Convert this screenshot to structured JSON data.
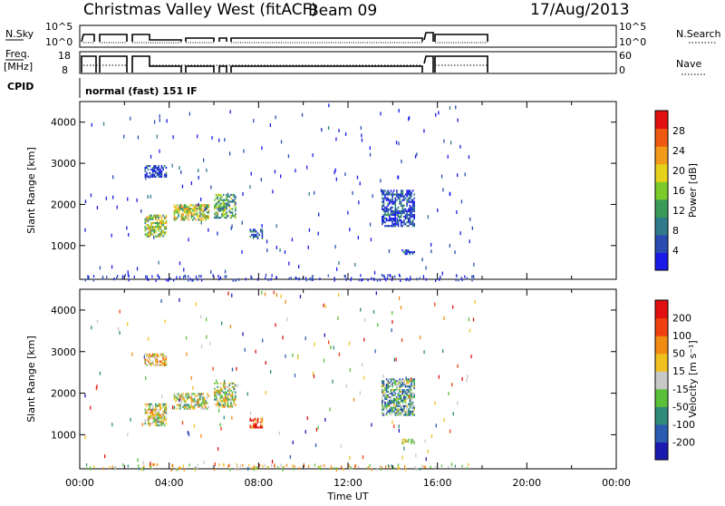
{
  "header": {
    "station": "Christmas Valley West (fitACF)",
    "beam": "Beam 09",
    "date": "17/Aug/2013"
  },
  "status_panels": {
    "nsky_label": "N.Sky",
    "nsky_ticks": [
      "10^5",
      "10^0"
    ],
    "nsearch_label": "N.Search",
    "nsearch_ticks": [
      "10^5",
      "10^0"
    ],
    "freq_label_1": "Freq.",
    "freq_label_2": "[MHz]",
    "freq_ticks": [
      "18",
      "8"
    ],
    "nave_label": "Nave",
    "nave_ticks": [
      "60",
      "0"
    ],
    "cpid_label": "CPID",
    "cpid_value": "normal (fast) 151 IF"
  },
  "chart_data": [
    {
      "type": "heatmap",
      "panel": "power",
      "ylabel": "Slant Range [km]",
      "ylim": [
        180,
        4500
      ],
      "xlim": [
        0,
        24
      ],
      "yticks": [
        "4000",
        "3000",
        "2000",
        "1000"
      ],
      "colorbar_label": "Power [dB]",
      "colorbar_ticks": [
        "28",
        "24",
        "20",
        "16",
        "12",
        "8",
        "4"
      ],
      "colors": [
        "#1a1ae6",
        "#2a4bb0",
        "#2f7a8a",
        "#3a9a5a",
        "#7acb2a",
        "#e6d21a",
        "#f29a1a",
        "#f05a10",
        "#e01010"
      ],
      "features": [
        {
          "name": "echo-band-1",
          "x": [
            2.9,
            3.9
          ],
          "y": [
            1250,
            1800
          ],
          "level": 0.5
        },
        {
          "name": "echo-band-2",
          "x": [
            4.2,
            5.8
          ],
          "y": [
            1650,
            2050
          ],
          "level": 0.55
        },
        {
          "name": "echo-band-3",
          "x": [
            6.0,
            7.0
          ],
          "y": [
            1700,
            2300
          ],
          "level": 0.4
        },
        {
          "name": "echo-band-4",
          "x": [
            7.6,
            8.2
          ],
          "y": [
            1200,
            1450
          ],
          "level": 0.2
        },
        {
          "name": "echo-band-5",
          "x": [
            2.9,
            3.9
          ],
          "y": [
            2700,
            3000
          ],
          "level": 0.1
        },
        {
          "name": "echo-band-6",
          "x": [
            13.5,
            15.0
          ],
          "y": [
            1500,
            2400
          ],
          "level": 0.15
        },
        {
          "name": "echo-band-7",
          "x": [
            14.4,
            15.0
          ],
          "y": [
            820,
            950
          ],
          "level": 0.1
        }
      ]
    },
    {
      "type": "heatmap",
      "panel": "velocity",
      "ylabel": "Slant Range [km]",
      "ylim": [
        180,
        4500
      ],
      "xlim": [
        0,
        24
      ],
      "yticks": [
        "4000",
        "3000",
        "2000",
        "1000"
      ],
      "xticks": [
        "00:00",
        "04:00",
        "08:00",
        "12:00",
        "16:00",
        "20:00",
        "00:00"
      ],
      "xlabel": "Time UT",
      "colorbar_label": "Velocity [m s⁻¹]",
      "colorbar_ticks": [
        "200",
        "100",
        "50",
        "15",
        "-15",
        "-50",
        "-100",
        "-200"
      ],
      "colors": [
        "#1a1ab0",
        "#2a5bb0",
        "#2f8a7a",
        "#5ac03a",
        "#c8c8c8",
        "#f0c020",
        "#f08a10",
        "#f04010",
        "#e01010"
      ],
      "features": [
        {
          "name": "echo-band-1",
          "x": [
            2.9,
            3.9
          ],
          "y": [
            1250,
            1800
          ],
          "level": 0.5
        },
        {
          "name": "echo-band-2",
          "x": [
            4.2,
            5.8
          ],
          "y": [
            1650,
            2050
          ],
          "level": 0.5
        },
        {
          "name": "echo-band-3",
          "x": [
            6.0,
            7.0
          ],
          "y": [
            1700,
            2300
          ],
          "level": 0.5
        },
        {
          "name": "echo-band-4",
          "x": [
            7.6,
            8.2
          ],
          "y": [
            1200,
            1450
          ],
          "level": 0.85
        },
        {
          "name": "echo-band-5",
          "x": [
            2.9,
            3.9
          ],
          "y": [
            2700,
            3000
          ],
          "level": 0.6
        },
        {
          "name": "echo-band-6",
          "x": [
            13.5,
            15.0
          ],
          "y": [
            1500,
            2400
          ],
          "level": 0.35
        },
        {
          "name": "echo-band-7",
          "x": [
            14.4,
            15.0
          ],
          "y": [
            820,
            950
          ],
          "level": 0.55
        }
      ]
    }
  ]
}
